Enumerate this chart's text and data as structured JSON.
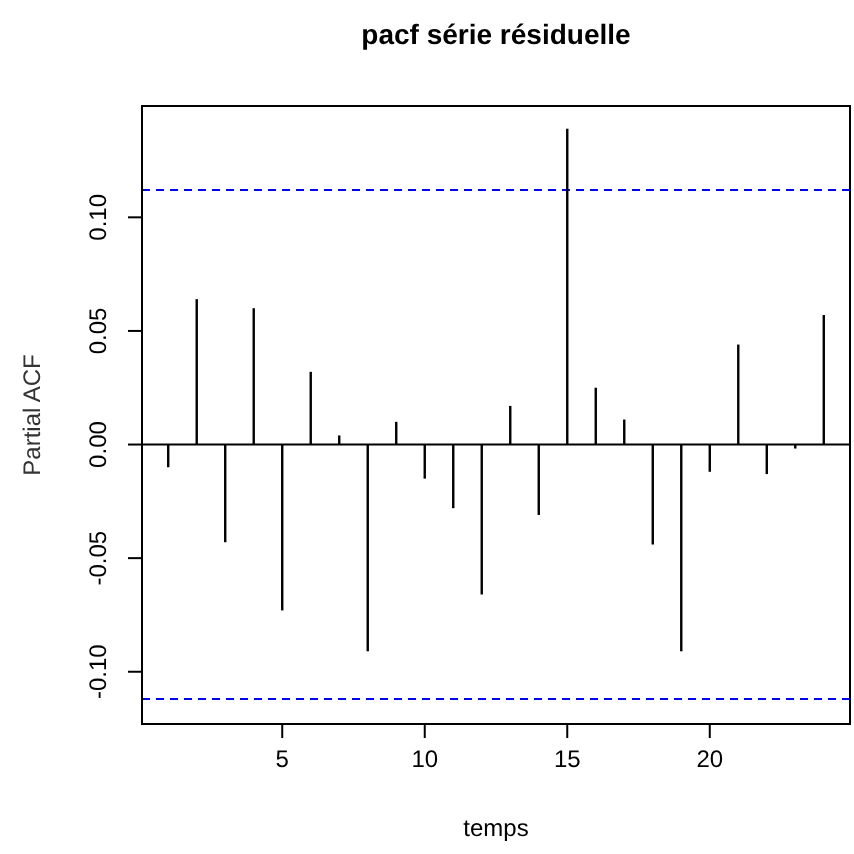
{
  "chart_data": {
    "type": "bar",
    "title": "pacf série résiduelle",
    "xlabel": "temps",
    "ylabel": "Partial ACF",
    "x": [
      1,
      2,
      3,
      4,
      5,
      6,
      7,
      8,
      9,
      10,
      11,
      12,
      13,
      14,
      15,
      16,
      17,
      18,
      19,
      20,
      21,
      22,
      23,
      24
    ],
    "values": [
      -0.01,
      0.064,
      -0.043,
      0.06,
      -0.073,
      0.032,
      0.004,
      -0.091,
      0.01,
      -0.015,
      -0.028,
      -0.066,
      0.017,
      -0.031,
      0.139,
      0.025,
      0.011,
      -0.044,
      -0.091,
      -0.012,
      0.044,
      -0.013,
      -0.001,
      0.057
    ],
    "color": "#000000",
    "xlim": [
      0.08,
      24.92
    ],
    "xticks": [
      5,
      10,
      15,
      20
    ],
    "ylim": [
      -0.123,
      0.149
    ],
    "yticks": [
      {
        "value": -0.1,
        "label": "-0.10"
      },
      {
        "value": -0.05,
        "label": "-0.05"
      },
      {
        "value": 0,
        "label": "0.00"
      },
      {
        "value": 0.05,
        "label": "0.05"
      },
      {
        "value": 0.1,
        "label": "0.10"
      }
    ],
    "ref_lines": [
      {
        "axis": "y",
        "value": 0.112,
        "color": "#0000ff",
        "line_style": "dashed"
      },
      {
        "axis": "y",
        "value": -0.112,
        "color": "#0000ff",
        "line_style": "dashed"
      },
      {
        "axis": "y",
        "value": 0,
        "color": "#000000",
        "line_style": "solid"
      }
    ],
    "grid": false
  }
}
